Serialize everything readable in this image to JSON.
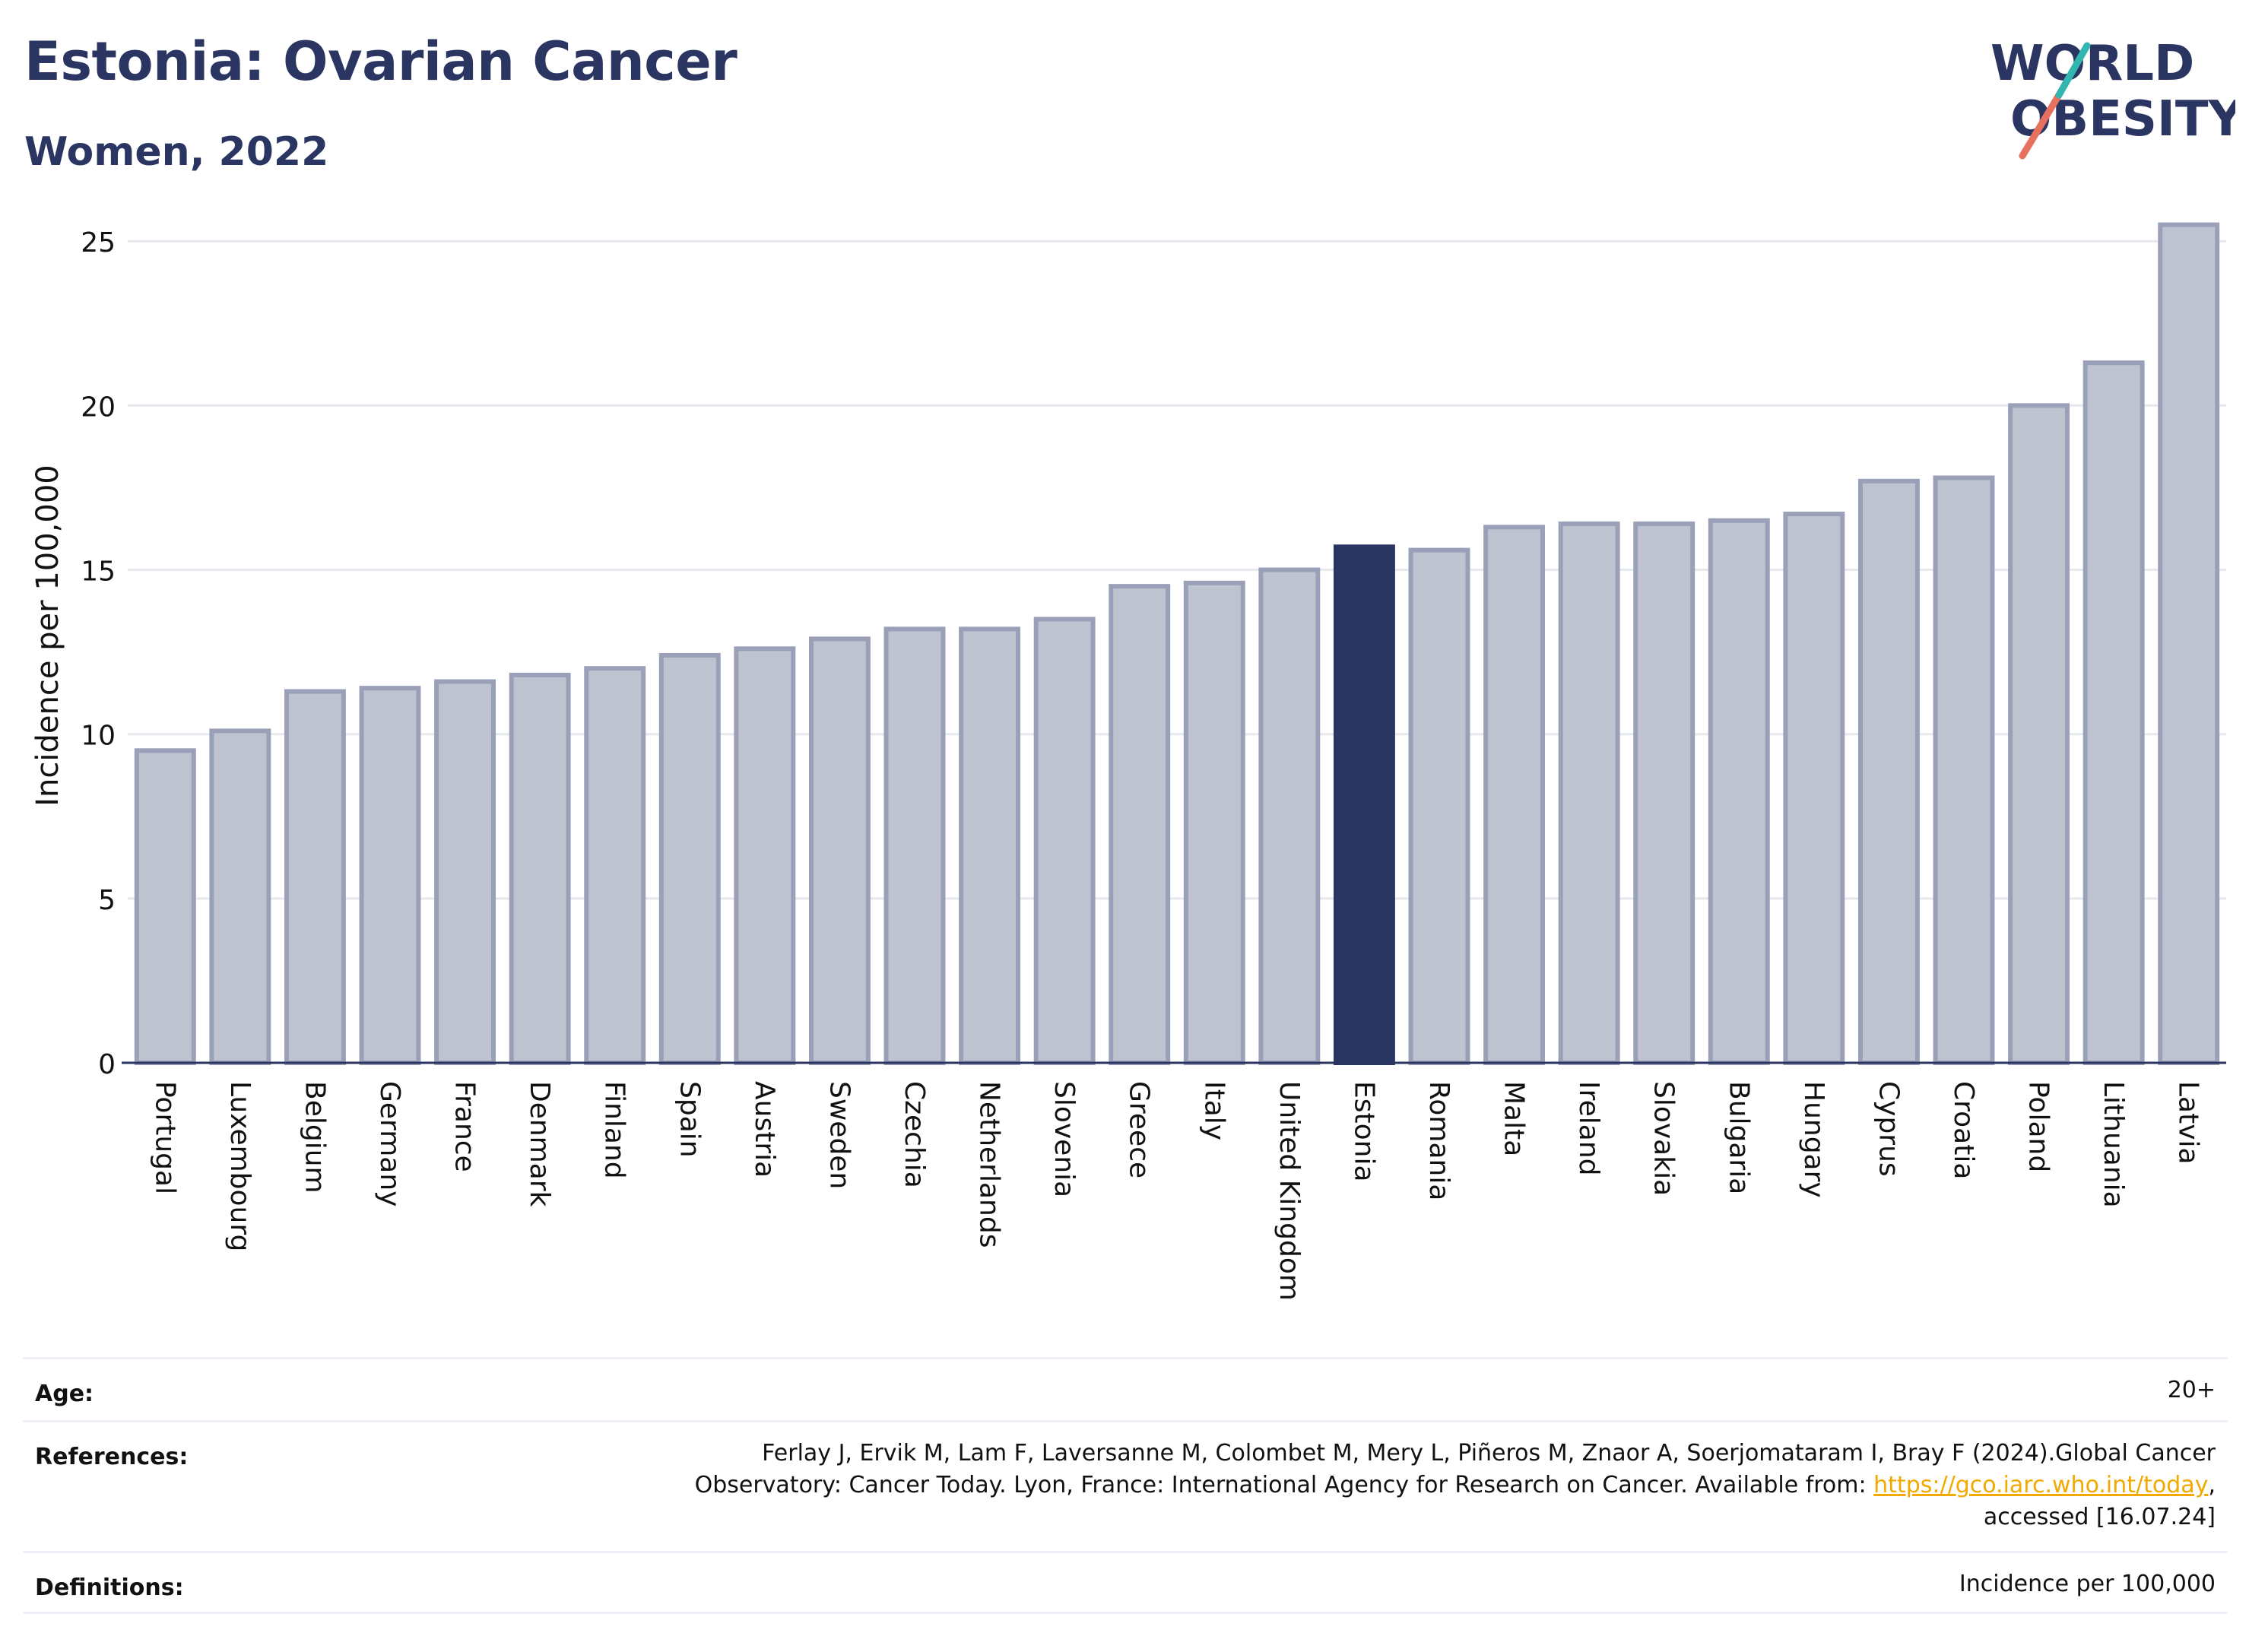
{
  "header": {
    "title": "Estonia: Ovarian Cancer",
    "subtitle": "Women, 2022",
    "logo_line1": "WORLD",
    "logo_line2": "OBESITY"
  },
  "colors": {
    "highlight": "#2a3562",
    "bar": "#bfc3d0",
    "bar_border": "#9aa0b8",
    "link": "#f2a900"
  },
  "chart_data": {
    "type": "bar",
    "ylabel": "Incidence per 100,000",
    "ylim": [
      0,
      26
    ],
    "yticks": [
      0,
      5,
      10,
      15,
      20,
      25
    ],
    "highlight": "Estonia",
    "categories": [
      "Portugal",
      "Luxembourg",
      "Belgium",
      "Germany",
      "France",
      "Denmark",
      "Finland",
      "Spain",
      "Austria",
      "Sweden",
      "Czechia",
      "Netherlands",
      "Slovenia",
      "Greece",
      "Italy",
      "United Kingdom",
      "Estonia",
      "Romania",
      "Malta",
      "Ireland",
      "Slovakia",
      "Bulgaria",
      "Hungary",
      "Cyprus",
      "Croatia",
      "Poland",
      "Lithuania",
      "Latvia"
    ],
    "values": [
      9.5,
      10.1,
      11.3,
      11.4,
      11.6,
      11.8,
      12.0,
      12.4,
      12.6,
      12.9,
      13.2,
      13.2,
      13.5,
      14.5,
      14.6,
      15.0,
      15.7,
      15.6,
      16.3,
      16.4,
      16.4,
      16.5,
      16.7,
      17.7,
      17.8,
      20.0,
      21.3,
      25.5
    ]
  },
  "footer": {
    "age_label": "Age:",
    "age_value": "20+",
    "references_label": "References:",
    "references_line1": "Ferlay J, Ervik M, Lam F, Laversanne M, Colombet M, Mery L, Piñeros M, Znaor A, Soerjomataram I, Bray F (2024).Global Cancer",
    "references_line2_pre": "Observatory: Cancer Today. Lyon, France: International Agency for Research on Cancer. Available from: ",
    "references_link": "https://gco.iarc.who.int/today",
    "references_line2_post": ",",
    "references_line3": "accessed [16.07.24]",
    "definitions_label": "Definitions:",
    "definitions_value": "Incidence per 100,000"
  }
}
